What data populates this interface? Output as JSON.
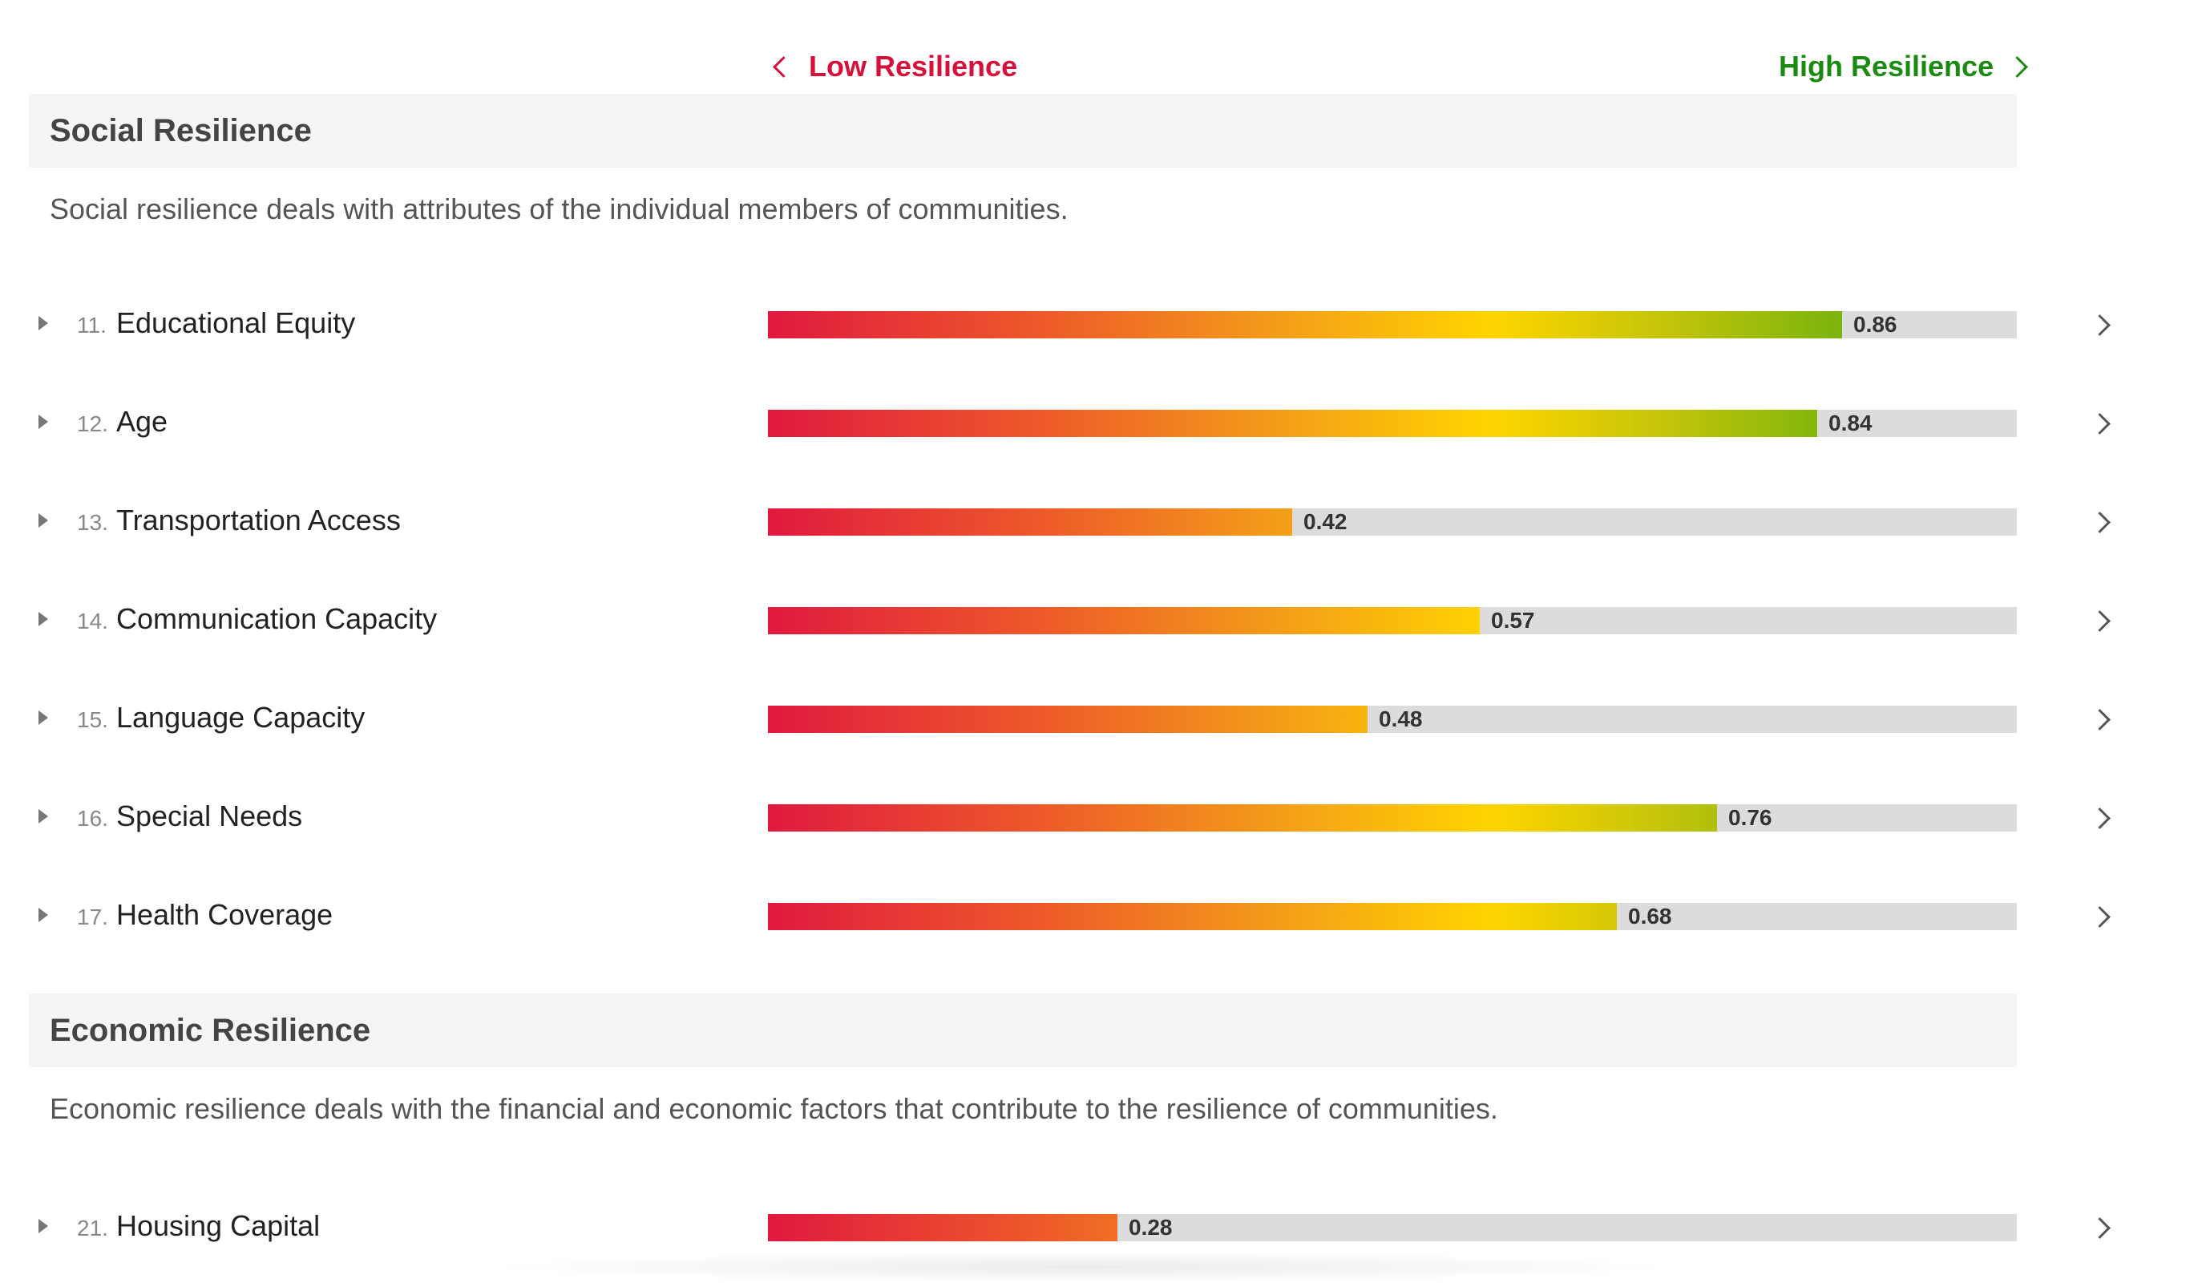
{
  "legend": {
    "low_label": "Low Resilience",
    "high_label": "High Resilience",
    "low_color": "#d6103a",
    "high_color": "#1a8a10"
  },
  "sections": [
    {
      "title": "Social Resilience",
      "description": "Social resilience deals with attributes of the individual members of communities.",
      "items": [
        {
          "number": "11.",
          "name": "Educational Equity",
          "score": 0.86,
          "value_label": "0.86"
        },
        {
          "number": "12.",
          "name": "Age",
          "score": 0.84,
          "value_label": "0.84"
        },
        {
          "number": "13.",
          "name": "Transportation Access",
          "score": 0.42,
          "value_label": "0.42"
        },
        {
          "number": "14.",
          "name": "Communication Capacity",
          "score": 0.57,
          "value_label": "0.57"
        },
        {
          "number": "15.",
          "name": "Language Capacity",
          "score": 0.48,
          "value_label": "0.48"
        },
        {
          "number": "16.",
          "name": "Special Needs",
          "score": 0.76,
          "value_label": "0.76"
        },
        {
          "number": "17.",
          "name": "Health Coverage",
          "score": 0.68,
          "value_label": "0.68"
        }
      ]
    },
    {
      "title": "Economic Resilience",
      "description": "Economic resilience deals with the financial and economic factors that contribute to the resilience of communities.",
      "items": [
        {
          "number": "21.",
          "name": "Housing Capital",
          "score": 0.28,
          "value_label": "0.28"
        }
      ]
    }
  ]
}
